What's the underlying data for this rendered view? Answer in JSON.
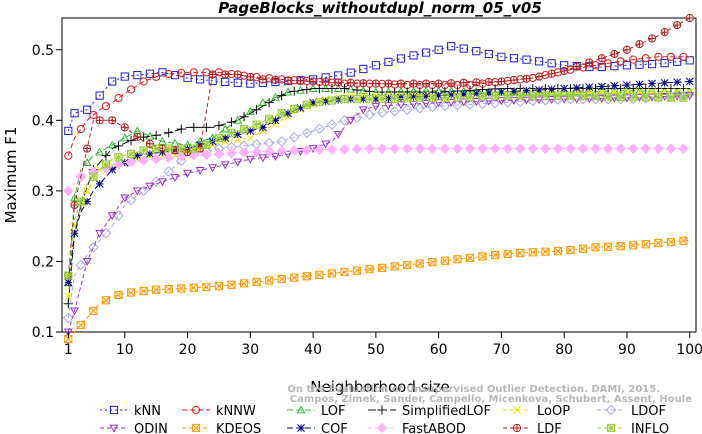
{
  "chart_data": {
    "type": "line",
    "title": "PageBlocks_withoutdupl_norm_05_v05",
    "xlabel": "Neighborhood size",
    "ylabel": "Maximum F1",
    "xlim": [
      0,
      101
    ],
    "ylim": [
      0.1,
      0.545
    ],
    "xticks": [
      1,
      10,
      20,
      30,
      40,
      50,
      60,
      70,
      80,
      90,
      100
    ],
    "yticks": [
      0.1,
      0.2,
      0.3,
      0.4,
      0.5
    ],
    "grid": false,
    "legend_position": "bottom",
    "watermark": "Campos, Zimek, Sander, Campello, Micenkova, Schubert, Assent, Houle. On the Evaluation of Unsupervised Outlier Detection. DAMI, 2015.",
    "watermark_lines": [
      "On the Evaluation of Unsupervised Outlier Detection. DAMI, 2015.",
      "Campos, Zimek, Sander, Campello, Micenkova, Schubert, Assent, Houle"
    ],
    "series": [
      {
        "name": "kNN",
        "color": "#1f1fd6",
        "marker": "square",
        "dash": "2,3",
        "points": [
          [
            1,
            0.385
          ],
          [
            2,
            0.41
          ],
          [
            4,
            0.415
          ],
          [
            6,
            0.435
          ],
          [
            8,
            0.455
          ],
          [
            10,
            0.462
          ],
          [
            13,
            0.465
          ],
          [
            16,
            0.468
          ],
          [
            20,
            0.46
          ],
          [
            25,
            0.455
          ],
          [
            30,
            0.452
          ],
          [
            35,
            0.455
          ],
          [
            40,
            0.458
          ],
          [
            45,
            0.465
          ],
          [
            50,
            0.478
          ],
          [
            55,
            0.49
          ],
          [
            60,
            0.5
          ],
          [
            62,
            0.505
          ],
          [
            65,
            0.5
          ],
          [
            70,
            0.49
          ],
          [
            75,
            0.485
          ],
          [
            80,
            0.478
          ],
          [
            85,
            0.475
          ],
          [
            90,
            0.478
          ],
          [
            95,
            0.48
          ],
          [
            100,
            0.485
          ]
        ]
      },
      {
        "name": "kNNW",
        "color": "#e31a1c",
        "marker": "circle",
        "dash": "5,3",
        "points": [
          [
            1,
            0.35
          ],
          [
            2,
            0.375
          ],
          [
            4,
            0.4
          ],
          [
            6,
            0.415
          ],
          [
            8,
            0.425
          ],
          [
            10,
            0.438
          ],
          [
            13,
            0.455
          ],
          [
            16,
            0.465
          ],
          [
            20,
            0.468
          ],
          [
            25,
            0.468
          ],
          [
            30,
            0.462
          ],
          [
            35,
            0.458
          ],
          [
            40,
            0.455
          ],
          [
            45,
            0.452
          ],
          [
            50,
            0.452
          ],
          [
            55,
            0.45
          ],
          [
            60,
            0.45
          ],
          [
            65,
            0.45
          ],
          [
            70,
            0.455
          ],
          [
            75,
            0.46
          ],
          [
            80,
            0.47
          ],
          [
            85,
            0.478
          ],
          [
            90,
            0.485
          ],
          [
            95,
            0.49
          ],
          [
            100,
            0.49
          ]
        ]
      },
      {
        "name": "LOF",
        "color": "#33bb33",
        "marker": "triangle-up",
        "dash": "6,3",
        "points": [
          [
            1,
            0.17
          ],
          [
            2,
            0.29
          ],
          [
            3,
            0.33
          ],
          [
            5,
            0.35
          ],
          [
            8,
            0.365
          ],
          [
            12,
            0.385
          ],
          [
            16,
            0.37
          ],
          [
            20,
            0.365
          ],
          [
            24,
            0.375
          ],
          [
            28,
            0.4
          ],
          [
            32,
            0.425
          ],
          [
            36,
            0.44
          ],
          [
            40,
            0.445
          ],
          [
            45,
            0.445
          ],
          [
            50,
            0.44
          ],
          [
            60,
            0.442
          ],
          [
            70,
            0.44
          ],
          [
            80,
            0.44
          ],
          [
            90,
            0.442
          ],
          [
            100,
            0.44
          ]
        ]
      },
      {
        "name": "SimplifiedLOF",
        "color": "#111111",
        "marker": "plus",
        "dash": "8,3",
        "points": [
          [
            1,
            0.14
          ],
          [
            2,
            0.24
          ],
          [
            3,
            0.28
          ],
          [
            5,
            0.33
          ],
          [
            8,
            0.36
          ],
          [
            12,
            0.375
          ],
          [
            16,
            0.38
          ],
          [
            20,
            0.39
          ],
          [
            24,
            0.39
          ],
          [
            28,
            0.4
          ],
          [
            32,
            0.42
          ],
          [
            36,
            0.44
          ],
          [
            40,
            0.445
          ],
          [
            45,
            0.445
          ],
          [
            50,
            0.44
          ],
          [
            60,
            0.44
          ],
          [
            70,
            0.445
          ],
          [
            80,
            0.445
          ],
          [
            90,
            0.445
          ],
          [
            100,
            0.445
          ]
        ]
      },
      {
        "name": "LoOP",
        "color": "#e8e800",
        "marker": "x",
        "dash": "4,3",
        "points": [
          [
            1,
            0.15
          ],
          [
            2,
            0.25
          ],
          [
            4,
            0.3
          ],
          [
            6,
            0.33
          ],
          [
            10,
            0.34
          ],
          [
            14,
            0.35
          ],
          [
            18,
            0.35
          ],
          [
            22,
            0.36
          ],
          [
            26,
            0.37
          ],
          [
            30,
            0.375
          ],
          [
            34,
            0.395
          ],
          [
            38,
            0.415
          ],
          [
            42,
            0.43
          ],
          [
            46,
            0.435
          ],
          [
            50,
            0.435
          ],
          [
            60,
            0.435
          ],
          [
            70,
            0.44
          ],
          [
            80,
            0.44
          ],
          [
            90,
            0.44
          ],
          [
            100,
            0.44
          ]
        ]
      },
      {
        "name": "LDOF",
        "color": "#a8a8e8",
        "marker": "diamond",
        "dash": "4,3",
        "points": [
          [
            1,
            0.12
          ],
          [
            2,
            0.18
          ],
          [
            4,
            0.21
          ],
          [
            6,
            0.23
          ],
          [
            8,
            0.25
          ],
          [
            10,
            0.28
          ],
          [
            13,
            0.3
          ],
          [
            16,
            0.32
          ],
          [
            20,
            0.35
          ],
          [
            25,
            0.36
          ],
          [
            30,
            0.365
          ],
          [
            35,
            0.37
          ],
          [
            40,
            0.385
          ],
          [
            45,
            0.4
          ],
          [
            50,
            0.41
          ],
          [
            55,
            0.415
          ],
          [
            60,
            0.42
          ],
          [
            70,
            0.425
          ],
          [
            80,
            0.43
          ],
          [
            90,
            0.43
          ],
          [
            100,
            0.435
          ]
        ]
      },
      {
        "name": "ODIN",
        "color": "#9a32cd",
        "marker": "triangle-down",
        "dash": "4,3",
        "points": [
          [
            1,
            0.1
          ],
          [
            2,
            0.13
          ],
          [
            4,
            0.2
          ],
          [
            6,
            0.24
          ],
          [
            8,
            0.265
          ],
          [
            10,
            0.29
          ],
          [
            12,
            0.3
          ],
          [
            15,
            0.31
          ],
          [
            20,
            0.325
          ],
          [
            25,
            0.335
          ],
          [
            30,
            0.345
          ],
          [
            35,
            0.35
          ],
          [
            40,
            0.36
          ],
          [
            43,
            0.37
          ],
          [
            46,
            0.4
          ],
          [
            48,
            0.415
          ],
          [
            50,
            0.42
          ],
          [
            60,
            0.425
          ],
          [
            70,
            0.428
          ],
          [
            80,
            0.43
          ],
          [
            90,
            0.432
          ],
          [
            100,
            0.435
          ]
        ]
      },
      {
        "name": "KDEOS",
        "color": "#ff9900",
        "marker": "square-x",
        "dash": "4,3",
        "points": [
          [
            1,
            0.09
          ],
          [
            2,
            0.1
          ],
          [
            4,
            0.12
          ],
          [
            6,
            0.14
          ],
          [
            8,
            0.15
          ],
          [
            10,
            0.155
          ],
          [
            15,
            0.16
          ],
          [
            20,
            0.162
          ],
          [
            25,
            0.165
          ],
          [
            30,
            0.17
          ],
          [
            35,
            0.175
          ],
          [
            40,
            0.18
          ],
          [
            45,
            0.185
          ],
          [
            50,
            0.19
          ],
          [
            55,
            0.195
          ],
          [
            60,
            0.2
          ],
          [
            65,
            0.205
          ],
          [
            70,
            0.21
          ],
          [
            75,
            0.213
          ],
          [
            80,
            0.215
          ],
          [
            85,
            0.22
          ],
          [
            90,
            0.222
          ],
          [
            95,
            0.226
          ],
          [
            100,
            0.23
          ]
        ]
      },
      {
        "name": "COF",
        "color": "#00008b",
        "marker": "star",
        "dash": "6,3",
        "points": [
          [
            1,
            0.17
          ],
          [
            2,
            0.24
          ],
          [
            3,
            0.27
          ],
          [
            5,
            0.3
          ],
          [
            8,
            0.33
          ],
          [
            12,
            0.35
          ],
          [
            16,
            0.355
          ],
          [
            20,
            0.36
          ],
          [
            24,
            0.37
          ],
          [
            28,
            0.38
          ],
          [
            32,
            0.39
          ],
          [
            36,
            0.41
          ],
          [
            40,
            0.425
          ],
          [
            45,
            0.43
          ],
          [
            50,
            0.43
          ],
          [
            60,
            0.435
          ],
          [
            70,
            0.44
          ],
          [
            80,
            0.445
          ],
          [
            90,
            0.45
          ],
          [
            100,
            0.455
          ]
        ]
      },
      {
        "name": "FastABOD",
        "color": "#ffb3ff",
        "marker": "diamond-filled",
        "dash": "4,3",
        "points": [
          [
            1,
            0.3
          ],
          [
            3,
            0.32
          ],
          [
            6,
            0.33
          ],
          [
            10,
            0.34
          ],
          [
            15,
            0.345
          ],
          [
            20,
            0.35
          ],
          [
            25,
            0.352
          ],
          [
            30,
            0.355
          ],
          [
            40,
            0.358
          ],
          [
            50,
            0.36
          ],
          [
            60,
            0.36
          ],
          [
            70,
            0.36
          ],
          [
            80,
            0.36
          ],
          [
            90,
            0.36
          ],
          [
            100,
            0.36
          ]
        ]
      },
      {
        "name": "LDF",
        "color": "#b22222",
        "marker": "circle-plus",
        "dash": "4,3",
        "points": [
          [
            1,
            0.18
          ],
          [
            2,
            0.28
          ],
          [
            4,
            0.36
          ],
          [
            5,
            0.4
          ],
          [
            8,
            0.4
          ],
          [
            10,
            0.39
          ],
          [
            13,
            0.37
          ],
          [
            16,
            0.36
          ],
          [
            20,
            0.355
          ],
          [
            22,
            0.36
          ],
          [
            24,
            0.465
          ],
          [
            28,
            0.465
          ],
          [
            32,
            0.458
          ],
          [
            40,
            0.455
          ],
          [
            50,
            0.452
          ],
          [
            60,
            0.452
          ],
          [
            70,
            0.455
          ],
          [
            75,
            0.46
          ],
          [
            80,
            0.47
          ],
          [
            85,
            0.485
          ],
          [
            90,
            0.5
          ],
          [
            95,
            0.52
          ],
          [
            100,
            0.545
          ]
        ]
      },
      {
        "name": "INFLO",
        "color": "#9acd32",
        "marker": "square-star",
        "dash": "4,3",
        "points": [
          [
            1,
            0.18
          ],
          [
            2,
            0.26
          ],
          [
            4,
            0.31
          ],
          [
            6,
            0.33
          ],
          [
            8,
            0.345
          ],
          [
            10,
            0.35
          ],
          [
            14,
            0.36
          ],
          [
            18,
            0.36
          ],
          [
            22,
            0.36
          ],
          [
            26,
            0.38
          ],
          [
            30,
            0.39
          ],
          [
            35,
            0.41
          ],
          [
            40,
            0.425
          ],
          [
            45,
            0.43
          ],
          [
            50,
            0.43
          ],
          [
            60,
            0.432
          ],
          [
            70,
            0.435
          ],
          [
            80,
            0.435
          ],
          [
            90,
            0.433
          ],
          [
            100,
            0.432
          ]
        ]
      }
    ]
  }
}
